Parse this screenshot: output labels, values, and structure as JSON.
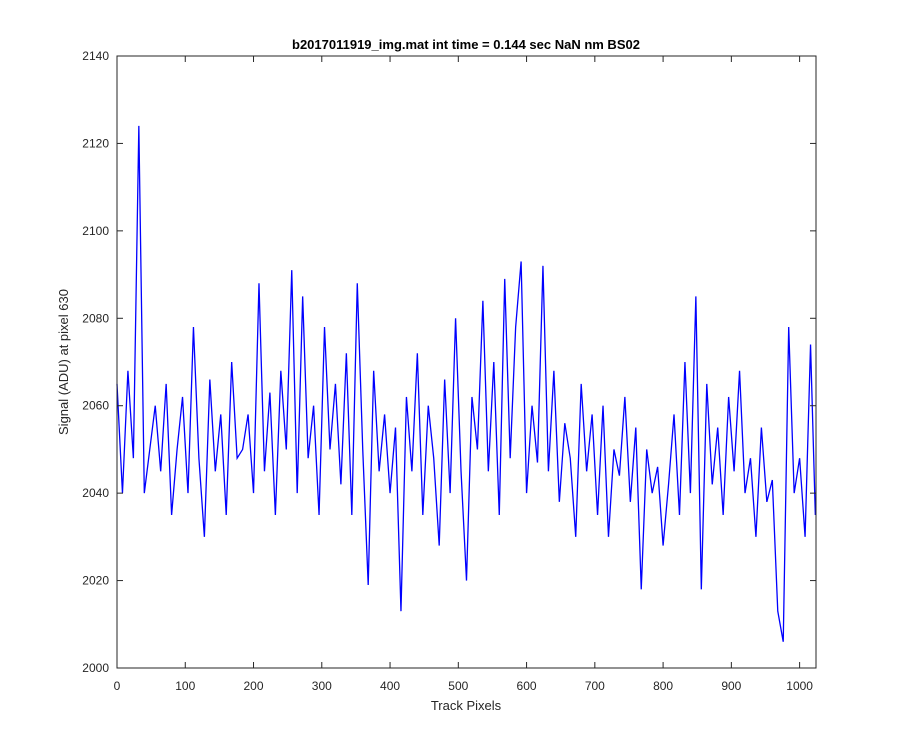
{
  "chart_data": {
    "type": "line",
    "title": "b2017011919_img.mat int time = 0.144 sec  NaN nm BS02",
    "xlabel": "Track Pixels",
    "ylabel": "Signal (ADU) at pixel 630",
    "xlim": [
      0,
      1024
    ],
    "ylim": [
      2000,
      2140
    ],
    "xticks": [
      0,
      100,
      200,
      300,
      400,
      500,
      600,
      700,
      800,
      900,
      1000
    ],
    "yticks": [
      2000,
      2020,
      2040,
      2060,
      2080,
      2100,
      2120,
      2140
    ],
    "grid": false,
    "legend": "none",
    "colors": {
      "series": "#0000ff",
      "axes": "#262626",
      "background": "#ffffff"
    },
    "series": [
      {
        "x": [
          0,
          8,
          16,
          24,
          32,
          40,
          48,
          56,
          64,
          72,
          80,
          88,
          96,
          104,
          112,
          120,
          128,
          136,
          144,
          152,
          160,
          168,
          176,
          184,
          192,
          200,
          208,
          216,
          224,
          232,
          240,
          248,
          256,
          264,
          272,
          280,
          288,
          296,
          304,
          312,
          320,
          328,
          336,
          344,
          352,
          360,
          368,
          376,
          384,
          392,
          400,
          408,
          416,
          424,
          432,
          440,
          448,
          456,
          464,
          472,
          480,
          488,
          496,
          504,
          512,
          520,
          528,
          536,
          544,
          552,
          560,
          568,
          576,
          584,
          592,
          600,
          608,
          616,
          624,
          632,
          640,
          648,
          656,
          664,
          672,
          680,
          688,
          696,
          704,
          712,
          720,
          728,
          736,
          744,
          752,
          760,
          768,
          776,
          784,
          792,
          800,
          808,
          816,
          824,
          832,
          840,
          848,
          856,
          864,
          872,
          880,
          888,
          896,
          904,
          912,
          920,
          928,
          936,
          944,
          952,
          960,
          968,
          976,
          984,
          992,
          1000,
          1008,
          1016,
          1023
        ],
        "values": [
          2065,
          2040,
          2068,
          2048,
          2124,
          2040,
          2050,
          2060,
          2045,
          2065,
          2035,
          2050,
          2062,
          2040,
          2078,
          2048,
          2030,
          2066,
          2045,
          2058,
          2035,
          2070,
          2048,
          2050,
          2058,
          2040,
          2088,
          2045,
          2063,
          2035,
          2068,
          2050,
          2091,
          2040,
          2085,
          2048,
          2060,
          2035,
          2078,
          2050,
          2065,
          2042,
          2072,
          2035,
          2088,
          2050,
          2019,
          2068,
          2045,
          2058,
          2040,
          2055,
          2013,
          2062,
          2045,
          2072,
          2035,
          2060,
          2048,
          2028,
          2066,
          2040,
          2080,
          2045,
          2020,
          2062,
          2050,
          2084,
          2045,
          2070,
          2035,
          2089,
          2048,
          2078,
          2093,
          2040,
          2060,
          2047,
          2092,
          2045,
          2068,
          2038,
          2056,
          2048,
          2030,
          2065,
          2045,
          2058,
          2035,
          2060,
          2030,
          2050,
          2044,
          2062,
          2038,
          2055,
          2018,
          2050,
          2040,
          2046,
          2028,
          2042,
          2058,
          2035,
          2070,
          2040,
          2085,
          2018,
          2065,
          2042,
          2055,
          2035,
          2062,
          2045,
          2068,
          2040,
          2048,
          2030,
          2055,
          2038,
          2043,
          2013,
          2006,
          2078,
          2040,
          2048,
          2030,
          2074,
          2035
        ]
      }
    ]
  }
}
